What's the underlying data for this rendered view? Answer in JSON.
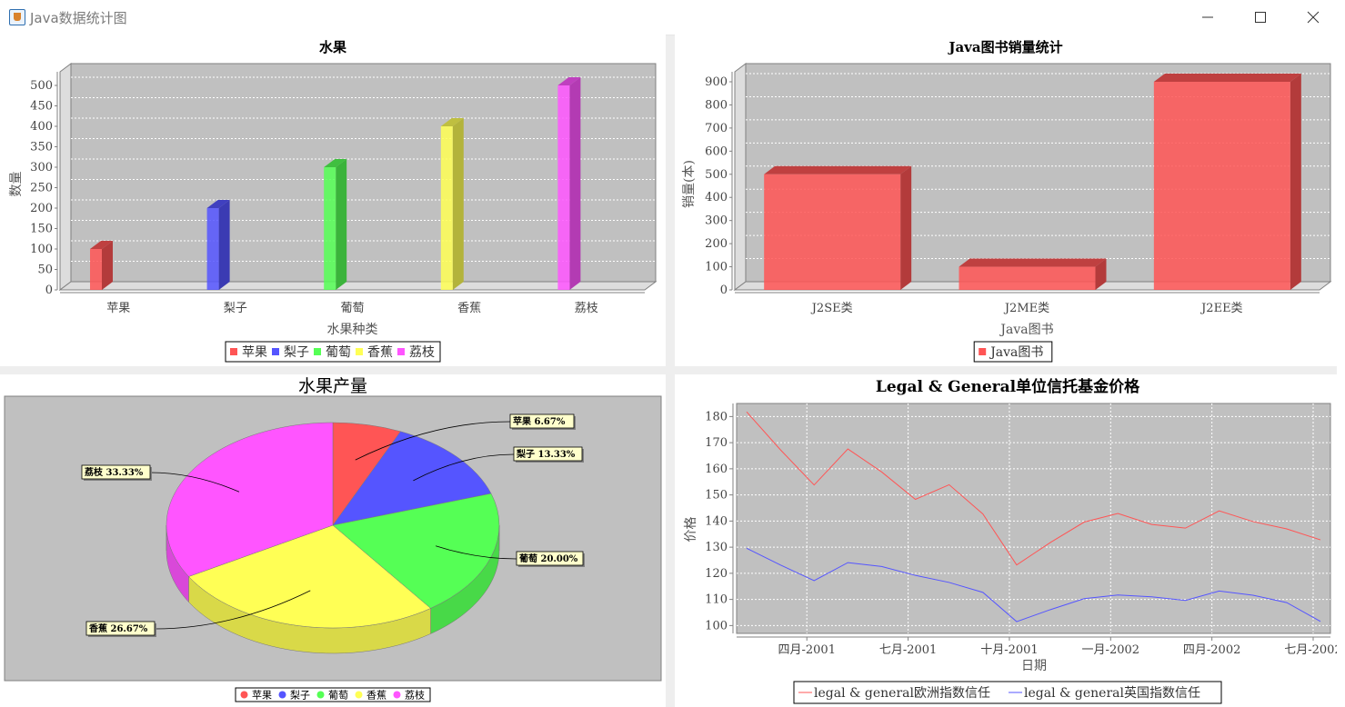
{
  "window": {
    "title": "Java数据统计图"
  },
  "chart_data": [
    {
      "type": "bar",
      "title": "水果",
      "xlabel": "水果种类",
      "ylabel": "数量",
      "categories": [
        "苹果",
        "梨子",
        "葡萄",
        "香蕉",
        "荔枝"
      ],
      "series": [
        {
          "name": "苹果",
          "values": [
            100,
            0,
            0,
            0,
            0
          ]
        },
        {
          "name": "梨子",
          "values": [
            0,
            200,
            0,
            0,
            0
          ]
        },
        {
          "name": "葡萄",
          "values": [
            0,
            0,
            300,
            0,
            0
          ]
        },
        {
          "name": "香蕉",
          "values": [
            0,
            0,
            0,
            400,
            0
          ]
        },
        {
          "name": "荔枝",
          "values": [
            0,
            0,
            0,
            0,
            500
          ]
        }
      ],
      "colors": [
        "#ff5555",
        "#5555ff",
        "#55ff55",
        "#ffff55",
        "#ff55ff"
      ],
      "ylim": [
        0,
        500
      ],
      "yticks": [
        0,
        50,
        100,
        150,
        200,
        250,
        300,
        350,
        400,
        450,
        500
      ],
      "style": "3d",
      "grid": true,
      "legend": "bottom"
    },
    {
      "type": "bar",
      "title": "Java图书销量统计",
      "xlabel": "Java图书",
      "ylabel": "销量(本)",
      "categories": [
        "J2SE类",
        "J2ME类",
        "J2EE类"
      ],
      "series": [
        {
          "name": "Java图书",
          "values": [
            500,
            100,
            900
          ]
        }
      ],
      "colors": [
        "#ff5555"
      ],
      "ylim": [
        0,
        900
      ],
      "yticks": [
        0,
        100,
        200,
        300,
        400,
        500,
        600,
        700,
        800,
        900
      ],
      "style": "3d",
      "grid": true,
      "legend": "bottom"
    },
    {
      "type": "pie",
      "title": "水果产量",
      "labels": [
        "苹果",
        "梨子",
        "葡萄",
        "香蕉",
        "荔枝"
      ],
      "values": [
        6.67,
        13.33,
        20.0,
        26.67,
        33.33
      ],
      "slice_labels": [
        "苹果  6.67%",
        "梨子  13.33%",
        "葡萄  20.00%",
        "香蕉  26.67%",
        "荔枝  33.33%"
      ],
      "colors": [
        "#ff5555",
        "#5555ff",
        "#55ff55",
        "#ffff55",
        "#ff55ff"
      ],
      "style": "3d",
      "legend": "bottom"
    },
    {
      "type": "line",
      "title": "Legal & General单位信托基金价格",
      "xlabel": "日期",
      "ylabel": "价格",
      "x": [
        "2001-02",
        "2001-03",
        "2001-04",
        "2001-05",
        "2001-06",
        "2001-07",
        "2001-08",
        "2001-09",
        "2001-10",
        "2001-11",
        "2001-12",
        "2002-01",
        "2002-02",
        "2002-03",
        "2002-04",
        "2002-05",
        "2002-06",
        "2002-07"
      ],
      "xticks": [
        "四月-2001",
        "七月-2001",
        "十月-2001",
        "一月-2002",
        "四月-2002",
        "七月-2002"
      ],
      "series": [
        {
          "name": "legal & general欧洲指数信任",
          "values": [
            181.8,
            167.3,
            153.8,
            167.6,
            158.8,
            148.3,
            153.9,
            142.7,
            123.2,
            131.8,
            139.6,
            142.9,
            138.7,
            137.3,
            143.9,
            139.8,
            137.0,
            132.8
          ]
        },
        {
          "name": "legal & general英国指数信任",
          "values": [
            129.6,
            123.2,
            117.2,
            124.1,
            122.6,
            119.2,
            116.5,
            112.7,
            101.5,
            106.1,
            110.3,
            111.7,
            111.0,
            109.6,
            113.2,
            111.6,
            108.8,
            101.6
          ]
        }
      ],
      "colors": [
        "#ff5555",
        "#5555ff"
      ],
      "ylim": [
        97,
        185
      ],
      "yticks": [
        100,
        110,
        120,
        130,
        140,
        150,
        160,
        170,
        180
      ],
      "grid": true,
      "legend": "bottom"
    }
  ]
}
